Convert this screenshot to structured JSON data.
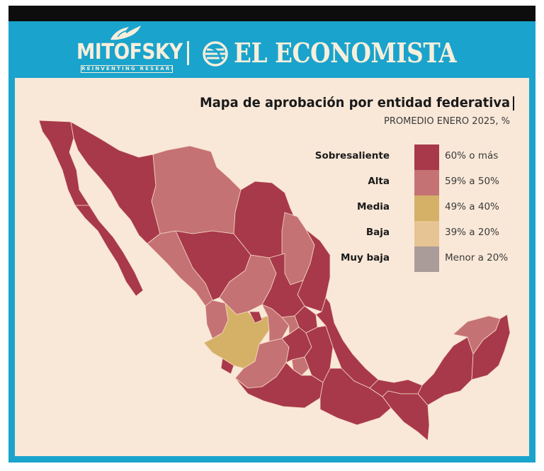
{
  "header": {
    "brand_left": "MITOFSKY",
    "tagline_left": "REINVENTING RESEARCH",
    "brand_right": "EL ECONOMISTA",
    "icons": [
      "bird-logo-icon",
      "globe-logo-icon"
    ]
  },
  "map": {
    "title": "Mapa de aprobación por entidad federativa",
    "subtitle": "PROMEDIO ENERO 2025, %",
    "legend": [
      {
        "category": "Sobresaliente",
        "range": "60% o más",
        "color": "#a8394a"
      },
      {
        "category": "Alta",
        "range": "59% a 50%",
        "color": "#c57274"
      },
      {
        "category": "Media",
        "range": "49% a 40%",
        "color": "#d5b167"
      },
      {
        "category": "Baja",
        "range": "39% a 20%",
        "color": "#e7c493"
      },
      {
        "category": "Muy baja",
        "range": "Menor a 20%",
        "color": "#aa9c99"
      }
    ]
  },
  "colors": {
    "header_blue": "#1aa3cc",
    "panel_bg": "#f9e8d8",
    "top_bar": "#0d0d0d"
  }
}
